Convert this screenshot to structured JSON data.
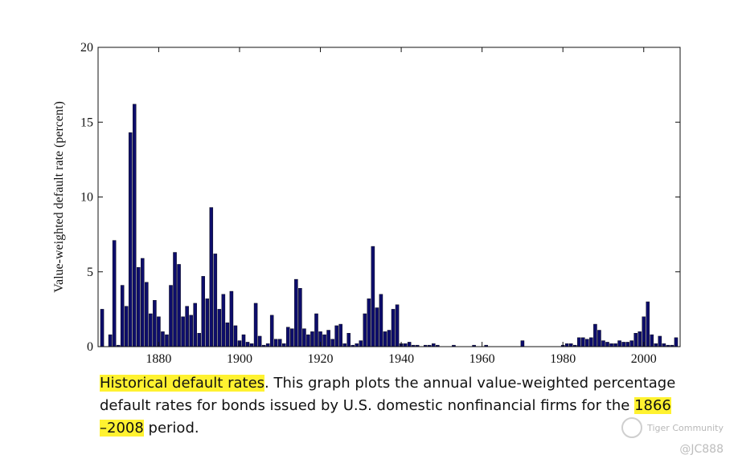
{
  "chart_data": {
    "type": "bar",
    "ylabel": "Value-weighted default rate (percent)",
    "xlim": [
      1865,
      2009
    ],
    "ylim": [
      0,
      20
    ],
    "yticks": [
      0,
      5,
      10,
      15,
      20
    ],
    "xticks": [
      1880,
      1900,
      1920,
      1940,
      1960,
      1980,
      2000
    ],
    "grid": false,
    "bar_color": "#0d0d6b",
    "x": [
      1866,
      1867,
      1868,
      1869,
      1870,
      1871,
      1872,
      1873,
      1874,
      1875,
      1876,
      1877,
      1878,
      1879,
      1880,
      1881,
      1882,
      1883,
      1884,
      1885,
      1886,
      1887,
      1888,
      1889,
      1890,
      1891,
      1892,
      1893,
      1894,
      1895,
      1896,
      1897,
      1898,
      1899,
      1900,
      1901,
      1902,
      1903,
      1904,
      1905,
      1906,
      1907,
      1908,
      1909,
      1910,
      1911,
      1912,
      1913,
      1914,
      1915,
      1916,
      1917,
      1918,
      1919,
      1920,
      1921,
      1922,
      1923,
      1924,
      1925,
      1926,
      1927,
      1928,
      1929,
      1930,
      1931,
      1932,
      1933,
      1934,
      1935,
      1936,
      1937,
      1938,
      1939,
      1940,
      1941,
      1942,
      1943,
      1944,
      1945,
      1946,
      1947,
      1948,
      1949,
      1950,
      1951,
      1952,
      1953,
      1954,
      1955,
      1956,
      1957,
      1958,
      1959,
      1960,
      1961,
      1962,
      1963,
      1964,
      1965,
      1966,
      1967,
      1968,
      1969,
      1970,
      1971,
      1972,
      1973,
      1974,
      1975,
      1976,
      1977,
      1978,
      1979,
      1980,
      1981,
      1982,
      1983,
      1984,
      1985,
      1986,
      1987,
      1988,
      1989,
      1990,
      1991,
      1992,
      1993,
      1994,
      1995,
      1996,
      1997,
      1998,
      1999,
      2000,
      2001,
      2002,
      2003,
      2004,
      2005,
      2006,
      2007,
      2008
    ],
    "values": [
      2.5,
      0,
      0.8,
      7.1,
      0.1,
      4.1,
      2.7,
      14.3,
      16.2,
      5.3,
      5.9,
      4.3,
      2.2,
      3.1,
      2.0,
      1.0,
      0.8,
      4.1,
      6.3,
      5.5,
      2.0,
      2.7,
      2.1,
      2.9,
      0.9,
      4.7,
      3.2,
      9.3,
      6.2,
      2.5,
      3.5,
      1.6,
      3.7,
      1.4,
      0.4,
      0.8,
      0.3,
      0.2,
      2.9,
      0.7,
      0.1,
      0.2,
      2.1,
      0.5,
      0.5,
      0.2,
      1.3,
      1.2,
      4.5,
      3.9,
      1.2,
      0.8,
      1.0,
      2.2,
      1.0,
      0.8,
      1.1,
      0.5,
      1.4,
      1.5,
      0.2,
      0.9,
      0.1,
      0.2,
      0.4,
      2.2,
      3.2,
      6.7,
      2.6,
      3.5,
      1.0,
      1.1,
      2.5,
      2.8,
      0.2,
      0.2,
      0.3,
      0.1,
      0.1,
      0,
      0.1,
      0.1,
      0.2,
      0.1,
      0,
      0,
      0,
      0.1,
      0,
      0,
      0,
      0,
      0.1,
      0,
      0,
      0.1,
      0,
      0,
      0,
      0,
      0,
      0,
      0,
      0,
      0.4,
      0,
      0,
      0,
      0,
      0,
      0,
      0,
      0,
      0,
      0.1,
      0.2,
      0.2,
      0.1,
      0.6,
      0.6,
      0.5,
      0.6,
      1.5,
      1.1,
      0.4,
      0.3,
      0.2,
      0.2,
      0.4,
      0.3,
      0.3,
      0.4,
      0.9,
      1.0,
      2.0,
      3.0,
      0.8,
      0.2,
      0.7,
      0.2,
      0.1,
      0.1,
      0.6
    ]
  },
  "caption": {
    "hl_title": "Historical default rates",
    "text1": ". This graph plots the annual value-weighted percentage default rates for bonds issued by U.S. domestic nonfinancial firms for the ",
    "hl_years": "1866 –2008",
    "text2": " period."
  },
  "watermark": {
    "brand": "Tiger Community",
    "handle": "@JC888"
  }
}
